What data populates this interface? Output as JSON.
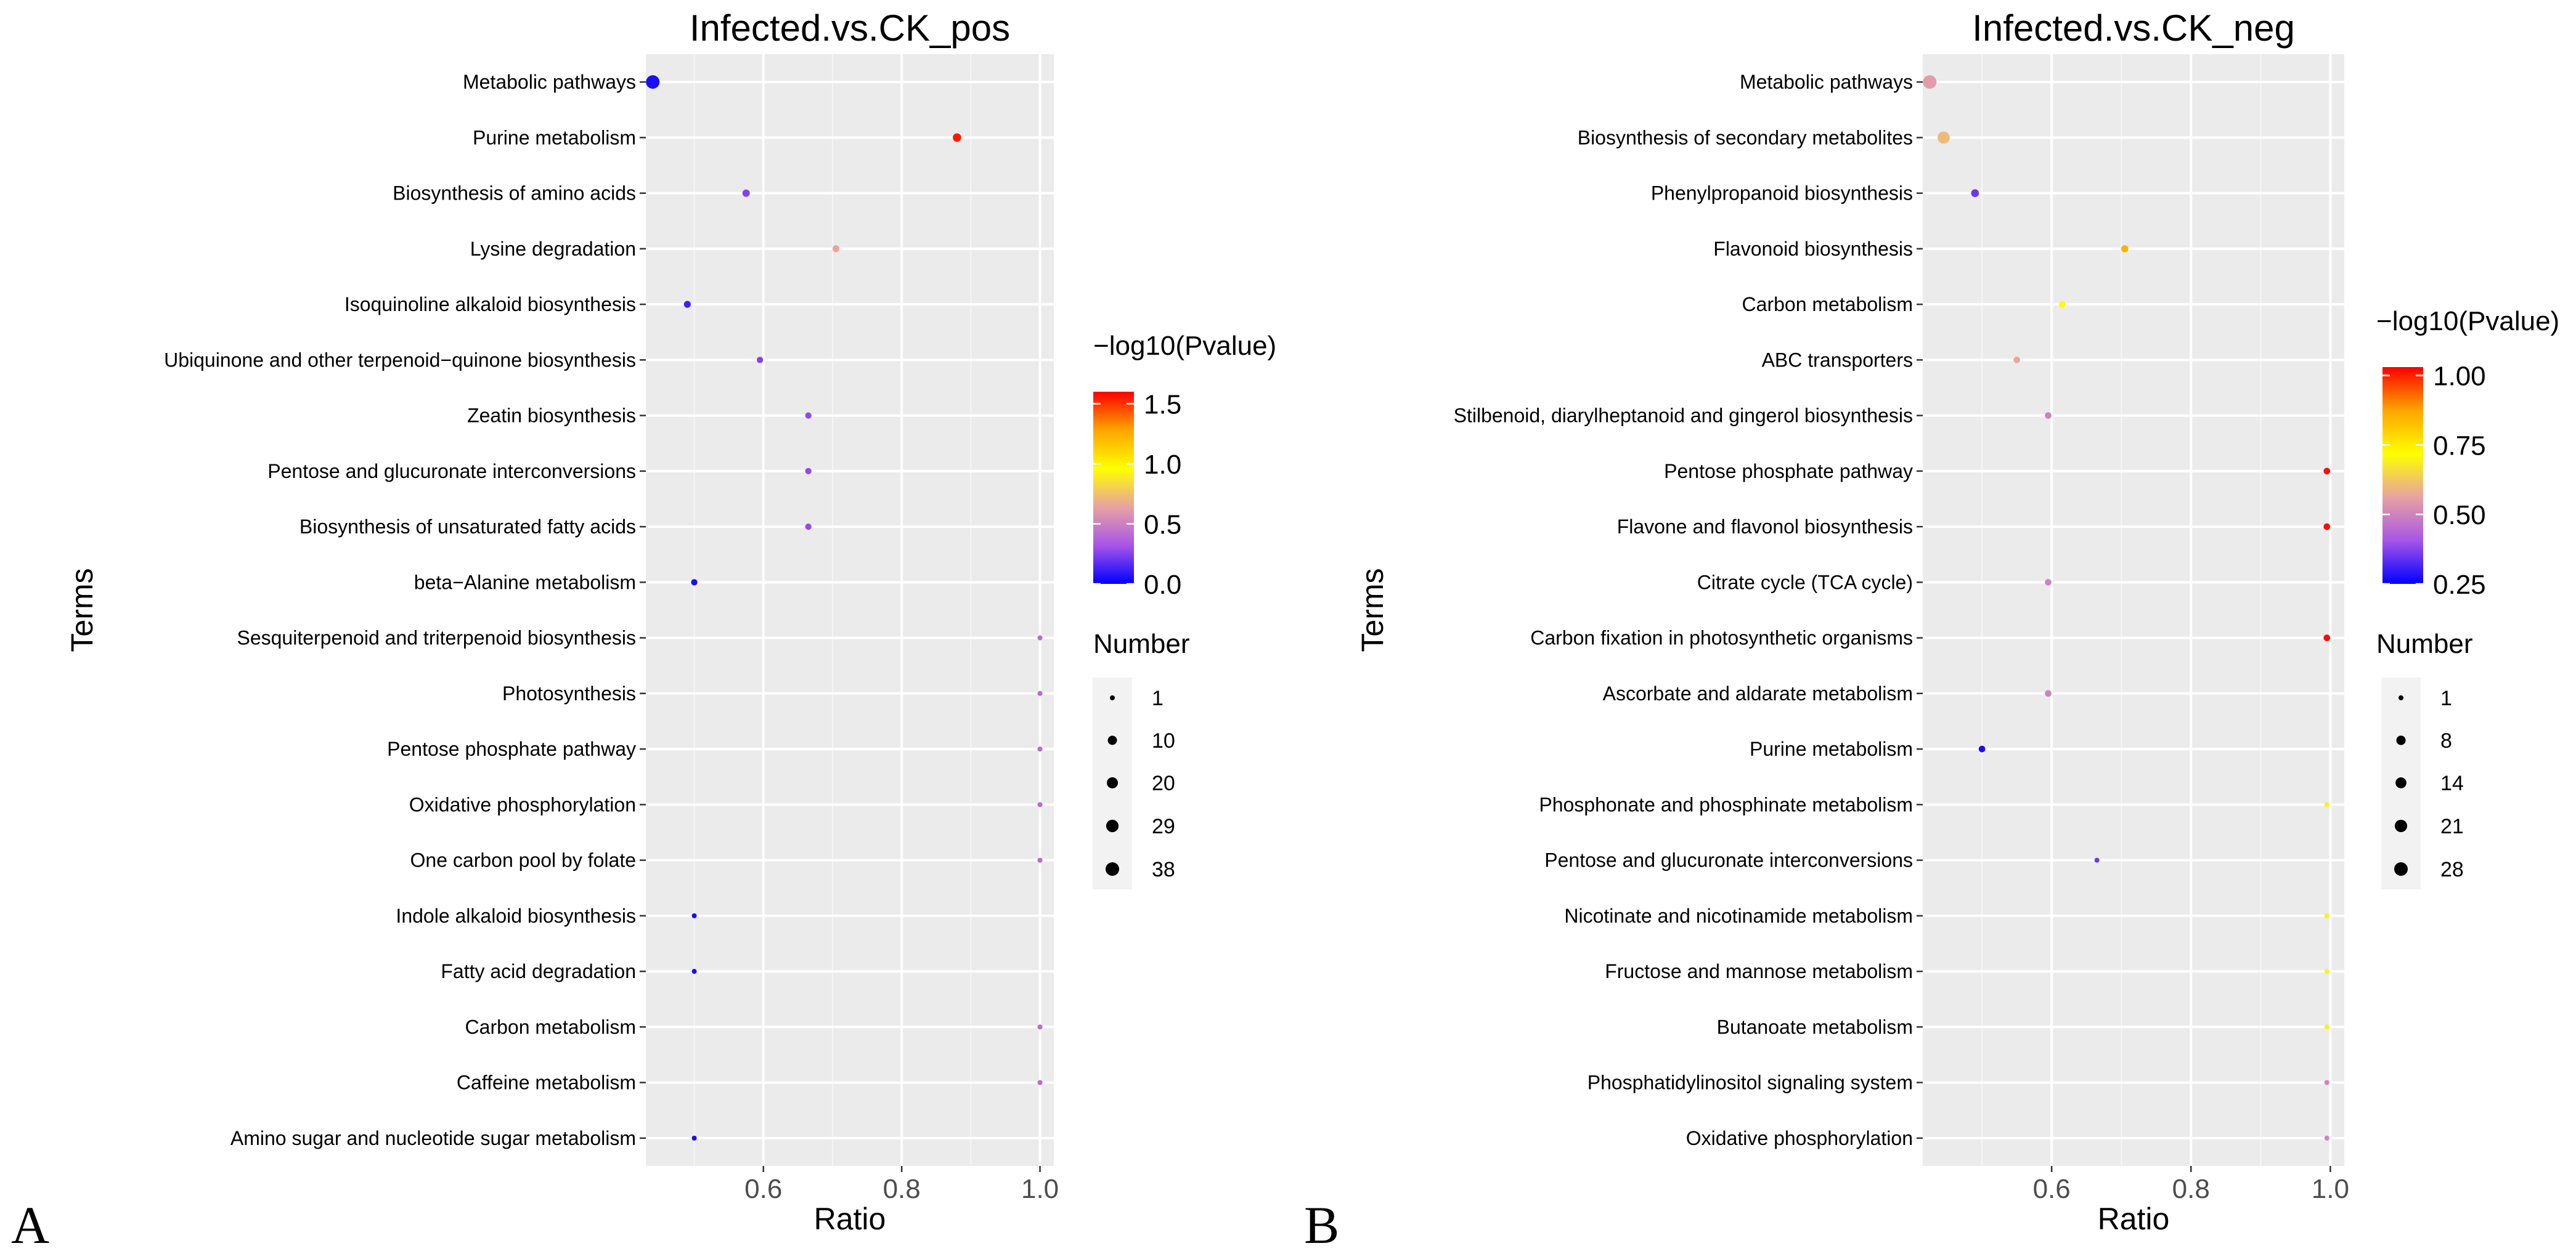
{
  "chart_data": [
    {
      "type": "scatter",
      "panel_label": "A",
      "title": "Infected.vs.CK_pos",
      "xlabel": "Ratio",
      "ylabel": "Terms",
      "xlim": [
        0.43,
        1.02
      ],
      "xticks": [
        0.6,
        0.8,
        1.0
      ],
      "xtick_labels": [
        "0.6",
        "0.8",
        "1.0"
      ],
      "grid": true,
      "legend_position": "right",
      "color_legend": {
        "title": "−log10(Pvalue)",
        "range": [
          0.0,
          1.6
        ],
        "ticks": [
          0.0,
          0.5,
          1.0,
          1.5
        ],
        "tick_labels": [
          "0.0",
          "0.5",
          "1.0",
          "1.5"
        ],
        "gradient": [
          "#0000FF",
          "#A855E8",
          "#E8A2A2",
          "#FFFF00",
          "#FFA500",
          "#FF0000"
        ]
      },
      "size_legend": {
        "title": "Number",
        "values": [
          1,
          10,
          20,
          29,
          38
        ],
        "labels": [
          "1",
          "10",
          "20",
          "29",
          "38"
        ]
      },
      "points": [
        {
          "term": "Metabolic pathways",
          "ratio": 0.44,
          "neglog10p": 0.05,
          "number": 38
        },
        {
          "term": "Purine metabolism",
          "ratio": 0.88,
          "neglog10p": 1.55,
          "number": 7
        },
        {
          "term": "Biosynthesis of amino acids",
          "ratio": 0.575,
          "neglog10p": 0.25,
          "number": 4
        },
        {
          "term": "Lysine degradation",
          "ratio": 0.705,
          "neglog10p": 0.65,
          "number": 3
        },
        {
          "term": "Isoquinoline alkaloid biosynthesis",
          "ratio": 0.49,
          "neglog10p": 0.12,
          "number": 3
        },
        {
          "term": "Ubiquinone and other terpenoid−quinone biosynthesis",
          "ratio": 0.595,
          "neglog10p": 0.25,
          "number": 2
        },
        {
          "term": "Zeatin biosynthesis",
          "ratio": 0.665,
          "neglog10p": 0.28,
          "number": 2
        },
        {
          "term": "Pentose and glucuronate interconversions",
          "ratio": 0.665,
          "neglog10p": 0.28,
          "number": 2
        },
        {
          "term": "Biosynthesis of unsaturated fatty acids",
          "ratio": 0.665,
          "neglog10p": 0.28,
          "number": 2
        },
        {
          "term": "beta−Alanine metabolism",
          "ratio": 0.5,
          "neglog10p": 0.05,
          "number": 2
        },
        {
          "term": "Sesquiterpenoid and triterpenoid biosynthesis",
          "ratio": 1.0,
          "neglog10p": 0.4,
          "number": 1
        },
        {
          "term": "Photosynthesis",
          "ratio": 1.0,
          "neglog10p": 0.4,
          "number": 1
        },
        {
          "term": "Pentose phosphate pathway",
          "ratio": 1.0,
          "neglog10p": 0.4,
          "number": 1
        },
        {
          "term": "Oxidative phosphorylation",
          "ratio": 1.0,
          "neglog10p": 0.4,
          "number": 1
        },
        {
          "term": "One carbon pool by folate",
          "ratio": 1.0,
          "neglog10p": 0.4,
          "number": 1
        },
        {
          "term": "Indole alkaloid biosynthesis",
          "ratio": 0.5,
          "neglog10p": 0.05,
          "number": 1
        },
        {
          "term": "Fatty acid degradation",
          "ratio": 0.5,
          "neglog10p": 0.05,
          "number": 1
        },
        {
          "term": "Carbon metabolism",
          "ratio": 1.0,
          "neglog10p": 0.4,
          "number": 1
        },
        {
          "term": "Caffeine metabolism",
          "ratio": 1.0,
          "neglog10p": 0.4,
          "number": 1
        },
        {
          "term": "Amino sugar and nucleotide sugar metabolism",
          "ratio": 0.5,
          "neglog10p": 0.05,
          "number": 1
        }
      ]
    },
    {
      "type": "scatter",
      "panel_label": "B",
      "title": "Infected.vs.CK_neg",
      "xlabel": "Ratio",
      "ylabel": "Terms",
      "xlim": [
        0.415,
        1.02
      ],
      "xticks": [
        0.6,
        0.8,
        1.0
      ],
      "xtick_labels": [
        "0.6",
        "0.8",
        "1.0"
      ],
      "grid": true,
      "legend_position": "right",
      "color_legend": {
        "title": "−log10(Pvalue)",
        "range": [
          0.25,
          1.03
        ],
        "ticks": [
          0.25,
          0.5,
          0.75,
          1.0
        ],
        "tick_labels": [
          "0.25",
          "0.50",
          "0.75",
          "1.00"
        ],
        "gradient": [
          "#0000FF",
          "#A855E8",
          "#E8A2A2",
          "#FFFF00",
          "#FFA500",
          "#FF0000"
        ]
      },
      "size_legend": {
        "title": "Number",
        "values": [
          1,
          8,
          14,
          21,
          28
        ],
        "labels": [
          "1",
          "8",
          "14",
          "21",
          "28"
        ]
      },
      "points": [
        {
          "term": "Metabolic pathways",
          "ratio": 0.425,
          "neglog10p": 0.55,
          "number": 28
        },
        {
          "term": "Biosynthesis of secondary metabolites",
          "ratio": 0.445,
          "neglog10p": 0.6,
          "number": 20
        },
        {
          "term": "Phenylpropanoid biosynthesis",
          "ratio": 0.49,
          "neglog10p": 0.35,
          "number": 4
        },
        {
          "term": "Flavonoid biosynthesis",
          "ratio": 0.705,
          "neglog10p": 0.85,
          "number": 3
        },
        {
          "term": "Carbon metabolism",
          "ratio": 0.615,
          "neglog10p": 0.72,
          "number": 2
        },
        {
          "term": "ABC transporters",
          "ratio": 0.55,
          "neglog10p": 0.57,
          "number": 2
        },
        {
          "term": "Stilbenoid, diarylheptanoid and gingerol biosynthesis",
          "ratio": 0.595,
          "neglog10p": 0.5,
          "number": 2
        },
        {
          "term": "Pentose phosphate pathway",
          "ratio": 0.995,
          "neglog10p": 1.02,
          "number": 2
        },
        {
          "term": "Flavone and flavonol biosynthesis",
          "ratio": 0.995,
          "neglog10p": 1.02,
          "number": 2
        },
        {
          "term": "Citrate cycle (TCA cycle)",
          "ratio": 0.595,
          "neglog10p": 0.5,
          "number": 2
        },
        {
          "term": "Carbon fixation in photosynthetic organisms",
          "ratio": 0.995,
          "neglog10p": 1.02,
          "number": 2
        },
        {
          "term": "Ascorbate and aldarate metabolism",
          "ratio": 0.595,
          "neglog10p": 0.5,
          "number": 2
        },
        {
          "term": "Purine metabolism",
          "ratio": 0.5,
          "neglog10p": 0.27,
          "number": 2
        },
        {
          "term": "Phosphonate and phosphinate metabolism",
          "ratio": 0.995,
          "neglog10p": 0.7,
          "number": 1
        },
        {
          "term": "Pentose and glucuronate interconversions",
          "ratio": 0.665,
          "neglog10p": 0.35,
          "number": 1
        },
        {
          "term": "Nicotinate and nicotinamide metabolism",
          "ratio": 0.995,
          "neglog10p": 0.7,
          "number": 1
        },
        {
          "term": "Fructose and mannose metabolism",
          "ratio": 0.995,
          "neglog10p": 0.7,
          "number": 1
        },
        {
          "term": "Butanoate metabolism",
          "ratio": 0.995,
          "neglog10p": 0.7,
          "number": 1
        },
        {
          "term": "Phosphatidylinositol signaling system",
          "ratio": 0.995,
          "neglog10p": 0.5,
          "number": 1
        },
        {
          "term": "Oxidative phosphorylation",
          "ratio": 0.995,
          "neglog10p": 0.5,
          "number": 1
        }
      ]
    }
  ]
}
